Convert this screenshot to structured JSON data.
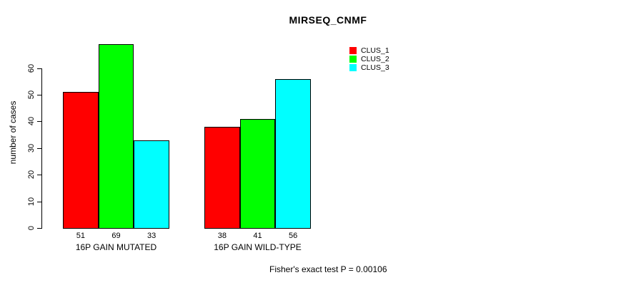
{
  "chart_data": {
    "type": "bar",
    "title": "MIRSEQ_CNMF",
    "ylabel": "number of cases",
    "xlabel": "",
    "ylim": [
      0,
      60
    ],
    "yticks": [
      0,
      10,
      20,
      30,
      40,
      50,
      60
    ],
    "categories": [
      "16P GAIN MUTATED",
      "16P GAIN WILD-TYPE"
    ],
    "series": [
      {
        "name": "CLUS_1",
        "color": "#ff0000",
        "values": [
          51,
          38
        ]
      },
      {
        "name": "CLUS_2",
        "color": "#00ff00",
        "values": [
          69,
          41
        ]
      },
      {
        "name": "CLUS_3",
        "color": "#00ffff",
        "values": [
          33,
          56
        ]
      }
    ],
    "show_bar_values": true,
    "legend_position": "top-right",
    "legend_entries": [
      "CLUS_1",
      "CLUS_2",
      "CLUS_3"
    ],
    "footnote": "Fisher's exact test P = 0.00106",
    "grid": false,
    "axis_color": "#000000",
    "text_color": "#000000",
    "background": "#ffffff"
  }
}
